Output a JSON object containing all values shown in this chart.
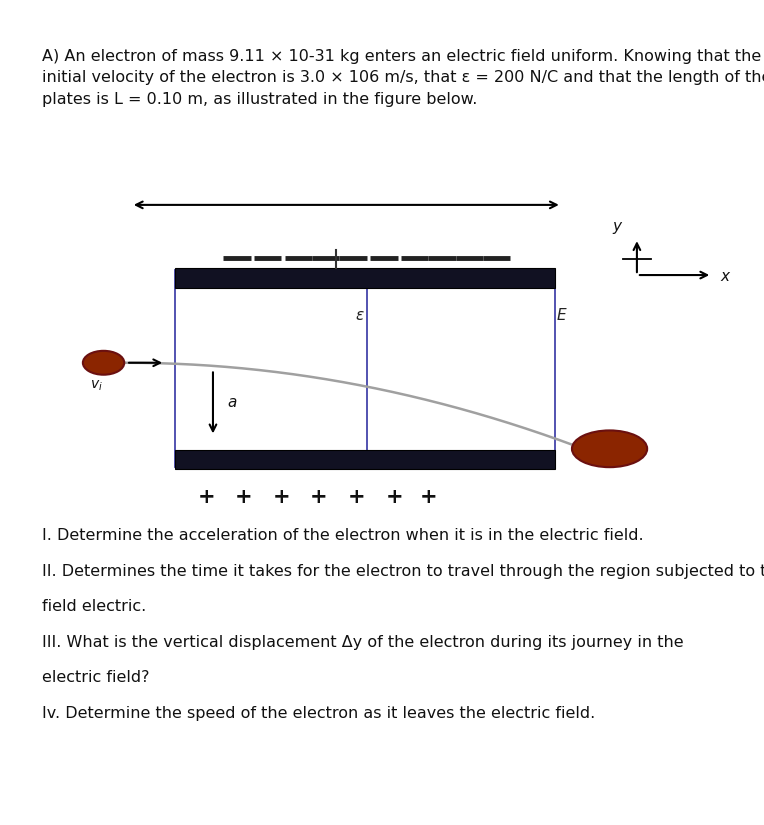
{
  "bg_color": "#ffffff",
  "fig_bg": "#d8d8d0",
  "plate_color": "#111122",
  "electron_color": "#8B2500",
  "curve_color": "#aaaaaa",
  "text_color": "#111111",
  "header_text": "A) An electron of mass 9.11 × 10-31 kg enters an electric field uniform. Knowing that the\ninitial velocity of the electron is 3.0 × 106 m/s, that ε = 200 N/C and that the length of the\nplates is L = 0.10 m, as illustrated in the figure below.",
  "question_lines": [
    "I. Determine the acceleration of the electron when it is in the electric field.",
    "II. Determines the time it takes for the electron to travel through the region subjected to the",
    "field electric.",
    "III. What is the vertical displacement Δy of the electron during its journey in the",
    "electric field?",
    "Iv. Determine the speed of the electron as it leaves the electric field."
  ],
  "font_size_body": 11.5
}
